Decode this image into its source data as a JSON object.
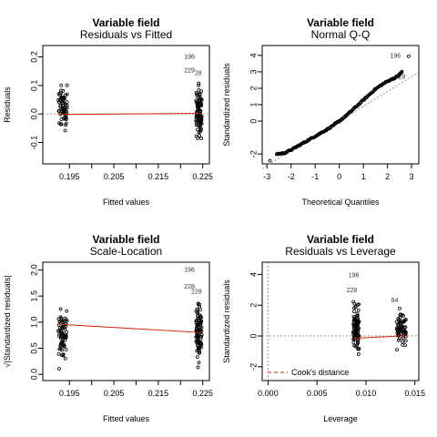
{
  "chart_data": [
    {
      "type": "scatter",
      "title": "Variable field",
      "subtitle": "Residuals vs Fitted",
      "xlabel": "Fitted values",
      "ylabel": "Residuals",
      "xlim": [
        0.189,
        0.2265
      ],
      "ylim": [
        -0.175,
        0.24
      ],
      "xticks": [
        0.195,
        0.205,
        0.215,
        0.225
      ],
      "xtick_labels": [
        "0.195",
        "0.205",
        "0.215",
        "0.225"
      ],
      "xticks_minor": [
        0.2,
        0.21,
        0.22
      ],
      "yticks": [
        -0.1,
        0.0,
        0.1,
        0.2
      ],
      "ytick_labels": [
        "-0.1",
        "0.0",
        "0.1",
        "0.2"
      ],
      "groups": [
        {
          "x_range": [
            0.1925,
            0.1945
          ],
          "y_range": [
            -0.09,
            0.13
          ],
          "n": 70
        },
        {
          "x_range": [
            0.2235,
            0.2248
          ],
          "y_range": [
            -0.12,
            0.14
          ],
          "n": 95
        }
      ],
      "reference_line": {
        "y": 0.0,
        "style": "dotted",
        "color": "#9a9a9a"
      },
      "smooth_line": {
        "x": [
          0.1925,
          0.2248
        ],
        "y": [
          -0.002,
          0.002
        ],
        "color": "#cc2200"
      },
      "annotations": [
        {
          "text": "196",
          "x": 0.2232,
          "y": 0.2
        },
        {
          "text": "229",
          "x": 0.2232,
          "y": 0.152
        },
        {
          "text": "28",
          "x": 0.2248,
          "y": 0.142
        }
      ]
    },
    {
      "type": "scatter",
      "title": "Variable field",
      "subtitle": "Normal Q-Q",
      "xlabel": "Theoretical Quantiles",
      "ylabel": "Standardized residuals",
      "xlim": [
        -3.2,
        3.3
      ],
      "ylim": [
        -2.6,
        4.6
      ],
      "xticks": [
        -3,
        -2,
        -1,
        0,
        1,
        2,
        3
      ],
      "xtick_labels": [
        "-3",
        "-2",
        "-1",
        "0",
        "1",
        "2",
        "3"
      ],
      "yticks": [
        -2,
        0,
        1,
        2,
        3,
        4
      ],
      "ytick_labels": [
        "-2",
        "0",
        "1",
        "2",
        "3",
        "4"
      ],
      "qq_points": [
        {
          "x": -2.88,
          "y": -2.4
        },
        {
          "x": -2.6,
          "y": -2.0
        },
        {
          "x": -2.3,
          "y": -1.95
        },
        {
          "x": -2.0,
          "y": -1.75
        },
        {
          "x": -1.7,
          "y": -1.5
        },
        {
          "x": -1.4,
          "y": -1.25
        },
        {
          "x": -1.1,
          "y": -1.0
        },
        {
          "x": -0.8,
          "y": -0.75
        },
        {
          "x": -0.5,
          "y": -0.5
        },
        {
          "x": -0.2,
          "y": -0.2
        },
        {
          "x": 0.0,
          "y": 0.0
        },
        {
          "x": 0.3,
          "y": 0.35
        },
        {
          "x": 0.6,
          "y": 0.75
        },
        {
          "x": 0.9,
          "y": 1.15
        },
        {
          "x": 1.2,
          "y": 1.55
        },
        {
          "x": 1.5,
          "y": 1.95
        },
        {
          "x": 1.8,
          "y": 2.25
        },
        {
          "x": 2.1,
          "y": 2.5
        },
        {
          "x": 2.4,
          "y": 2.7
        },
        {
          "x": 2.6,
          "y": 3.0
        },
        {
          "x": 2.88,
          "y": 3.95
        }
      ],
      "reference_line": {
        "x": [
          -3.2,
          3.3
        ],
        "y": [
          -2.88,
          2.97
        ],
        "style": "dotted",
        "color": "#9a9a9a"
      },
      "annotations": [
        {
          "text": "196",
          "x": 2.55,
          "y": 3.95
        },
        {
          "text": "228",
          "x": 2.75,
          "y": 2.7
        }
      ]
    },
    {
      "type": "scatter",
      "title": "Variable field",
      "subtitle": "Scale-Location",
      "xlabel": "Fitted values",
      "ylabel": "√|Standardized residuals|",
      "xlim": [
        0.189,
        0.2265
      ],
      "ylim": [
        -0.12,
        2.15
      ],
      "xticks": [
        0.195,
        0.205,
        0.215,
        0.225
      ],
      "xtick_labels": [
        "0.195",
        "0.205",
        "0.215",
        "0.225"
      ],
      "xticks_minor": [
        0.2,
        0.21,
        0.22
      ],
      "yticks": [
        0.0,
        0.5,
        1.0,
        1.5,
        2.0
      ],
      "ytick_labels": [
        "0.0",
        "0.5",
        "1.0",
        "1.5",
        "2.0"
      ],
      "groups": [
        {
          "x_range": [
            0.1925,
            0.1945
          ],
          "y_range": [
            0.05,
            1.5
          ],
          "n": 70
        },
        {
          "x_range": [
            0.2235,
            0.2248
          ],
          "y_range": [
            0.0,
            1.62
          ],
          "n": 95
        }
      ],
      "smooth_line": {
        "x": [
          0.1925,
          0.2248
        ],
        "y": [
          0.96,
          0.8
        ],
        "color": "#cc2200"
      },
      "annotations": [
        {
          "text": "196",
          "x": 0.2232,
          "y": 2.0
        },
        {
          "text": "228",
          "x": 0.2232,
          "y": 1.68
        },
        {
          "text": "228",
          "x": 0.2248,
          "y": 1.58
        }
      ]
    },
    {
      "type": "scatter",
      "title": "Variable field",
      "subtitle": "Residuals vs Leverage",
      "xlabel": "Leverage",
      "ylabel": "Standardized residuals",
      "xlim": [
        -0.0006,
        0.0154
      ],
      "ylim": [
        -2.9,
        4.8
      ],
      "xticks": [
        0.0,
        0.005,
        0.01,
        0.015
      ],
      "xtick_labels": [
        "0.000",
        "0.005",
        "0.010",
        "0.015"
      ],
      "yticks": [
        -2,
        0,
        2,
        4
      ],
      "ytick_labels": [
        "-2",
        "0",
        "2",
        "4"
      ],
      "groups": [
        {
          "x_range": [
            0.0087,
            0.0093
          ],
          "y_range": [
            -1.8,
            2.8
          ],
          "n": 90
        },
        {
          "x_range": [
            0.0131,
            0.0141
          ],
          "y_range": [
            -1.6,
            2.2
          ],
          "n": 70
        }
      ],
      "reference_lines": [
        {
          "y": 0,
          "style": "dotted",
          "color": "#9a9a9a"
        },
        {
          "x": 0.0,
          "style": "dotted",
          "color": "#9a9a9a"
        }
      ],
      "smooth_line": {
        "x": [
          0.0087,
          0.0141
        ],
        "y": [
          -0.15,
          0.02
        ],
        "color": "#cc2200"
      },
      "annotations": [
        {
          "text": "196",
          "x": 0.0093,
          "y": 3.95
        },
        {
          "text": "228",
          "x": 0.0091,
          "y": 2.95
        },
        {
          "text": "84",
          "x": 0.0133,
          "y": 2.3
        }
      ],
      "legend": {
        "label": "Cook's distance",
        "position": "bottom-left",
        "line_color": "#cc2200",
        "line_style": "dashed"
      }
    }
  ]
}
